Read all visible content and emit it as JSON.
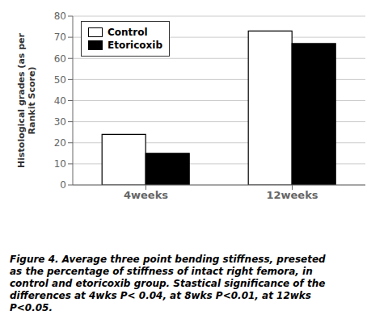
{
  "chart_data": {
    "type": "bar",
    "categories": [
      "4weeks",
      "12weeks"
    ],
    "series": [
      {
        "name": "Control",
        "color": "white",
        "values": [
          24,
          73
        ]
      },
      {
        "name": "Etoricoxib",
        "color": "black",
        "values": [
          15,
          67
        ]
      }
    ],
    "ylabel": "Histological grades (as per\nRankit Score)",
    "ylim": [
      0,
      80
    ],
    "yticks": [
      0,
      10,
      20,
      30,
      40,
      50,
      60,
      70,
      80
    ],
    "grid": true,
    "legend": "upper left",
    "annotations": [
      "Figure 4. Average three point bending stiffness, preseted\nas the percentage of stiffness of intact right femora, in\ncontrol and etoricoxib group. Stastical significance of the\ndifferences at 4wks P< 0.04, at 8wks P<0.01, at 12wks\nP<0.05."
    ]
  }
}
